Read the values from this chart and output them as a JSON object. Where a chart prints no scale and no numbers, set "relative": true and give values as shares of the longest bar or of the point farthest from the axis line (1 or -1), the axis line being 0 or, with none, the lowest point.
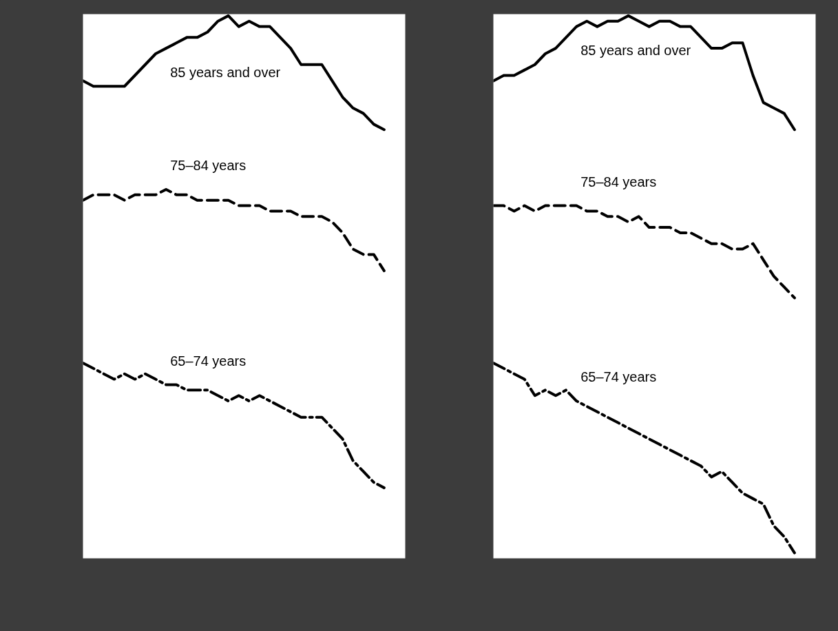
{
  "chart_data": [
    {
      "type": "line",
      "relative": true,
      "grid": false,
      "categories": [
        null,
        null,
        null,
        null,
        null,
        null,
        null,
        null,
        null,
        null,
        null,
        null,
        null,
        null,
        null,
        null,
        null,
        null,
        null,
        null,
        null,
        null,
        null,
        null,
        null,
        null,
        null,
        null,
        null,
        null
      ],
      "series": [
        {
          "name": "85 years and over",
          "color": "#000000",
          "line_style": "solid",
          "values": [
            0.88,
            0.87,
            0.87,
            0.87,
            0.87,
            0.89,
            0.91,
            0.93,
            0.94,
            0.95,
            0.96,
            0.96,
            0.97,
            0.99,
            1,
            0.98,
            0.99,
            0.98,
            0.98,
            0.96,
            0.94,
            0.91,
            0.91,
            0.91,
            0.88,
            0.85,
            0.83,
            0.82,
            0.8,
            0.79
          ]
        },
        {
          "name": "75–84 years",
          "color": "#000000",
          "line_style": "dashed",
          "values": [
            0.66,
            0.67,
            0.67,
            0.67,
            0.66,
            0.67,
            0.67,
            0.67,
            0.68,
            0.67,
            0.67,
            0.66,
            0.66,
            0.66,
            0.66,
            0.65,
            0.65,
            0.65,
            0.64,
            0.64,
            0.64,
            0.63,
            0.63,
            0.63,
            0.62,
            0.6,
            0.57,
            0.56,
            0.56,
            0.53
          ]
        },
        {
          "name": "65–74 years",
          "color": "#000000",
          "line_style": "dashdot",
          "values": [
            0.36,
            0.35,
            0.34,
            0.33,
            0.34,
            0.33,
            0.34,
            0.33,
            0.32,
            0.32,
            0.31,
            0.31,
            0.31,
            0.3,
            0.29,
            0.3,
            0.29,
            0.3,
            0.29,
            0.28,
            0.27,
            0.26,
            0.26,
            0.26,
            0.24,
            0.22,
            0.18,
            0.16,
            0.14,
            0.13
          ]
        }
      ]
    },
    {
      "type": "line",
      "relative": true,
      "grid": false,
      "categories": [
        null,
        null,
        null,
        null,
        null,
        null,
        null,
        null,
        null,
        null,
        null,
        null,
        null,
        null,
        null,
        null,
        null,
        null,
        null,
        null,
        null,
        null,
        null,
        null,
        null,
        null,
        null,
        null,
        null,
        null
      ],
      "series": [
        {
          "name": "85 years and over",
          "color": "#000000",
          "line_style": "solid",
          "values": [
            0.88,
            0.89,
            0.89,
            0.9,
            0.91,
            0.93,
            0.94,
            0.96,
            0.98,
            0.99,
            0.98,
            0.99,
            0.99,
            1,
            0.99,
            0.98,
            0.99,
            0.99,
            0.98,
            0.98,
            0.96,
            0.94,
            0.94,
            0.95,
            0.95,
            0.89,
            0.84,
            0.83,
            0.82,
            0.79
          ]
        },
        {
          "name": "75–84 years",
          "color": "#000000",
          "line_style": "dashed",
          "values": [
            0.65,
            0.65,
            0.64,
            0.65,
            0.64,
            0.65,
            0.65,
            0.65,
            0.65,
            0.64,
            0.64,
            0.63,
            0.63,
            0.62,
            0.63,
            0.61,
            0.61,
            0.61,
            0.6,
            0.6,
            0.59,
            0.58,
            0.58,
            0.57,
            0.57,
            0.58,
            0.55,
            0.52,
            0.5,
            0.48
          ]
        },
        {
          "name": "65–74 years",
          "color": "#000000",
          "line_style": "dashdot",
          "values": [
            0.36,
            0.35,
            0.34,
            0.33,
            0.3,
            0.31,
            0.3,
            0.31,
            0.29,
            0.28,
            0.27,
            0.26,
            0.25,
            0.24,
            0.23,
            0.22,
            0.21,
            0.2,
            0.19,
            0.18,
            0.17,
            0.15,
            0.16,
            0.14,
            0.12,
            0.11,
            0.1,
            0.06,
            0.04,
            0.01
          ]
        }
      ]
    }
  ]
}
